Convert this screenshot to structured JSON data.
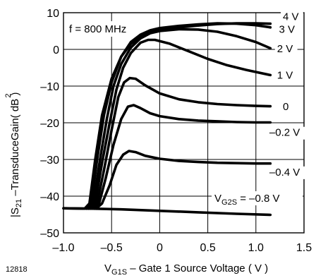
{
  "chart_data": {
    "type": "line",
    "annotation": "f = 800 MHz",
    "figure_id": "12818",
    "xlabel": {
      "prefix": "V",
      "sub": "G1S",
      "rest": " – Gate 1 Source Voltage ( V )"
    },
    "ylabel": {
      "prefix": "|S",
      "sub": "21",
      "sup": "2",
      "rest": " –TransduceGain( dB )"
    },
    "xlim": [
      -1.0,
      1.5
    ],
    "ylim": [
      -50,
      10
    ],
    "xticks": [
      -1.0,
      -0.5,
      0,
      0.5,
      1.0,
      1.5
    ],
    "xtick_labels": [
      "–1.0",
      "–0.5",
      "0",
      "0.5",
      "1.0",
      "1.5"
    ],
    "yticks": [
      10,
      0,
      -10,
      -20,
      -30,
      -40,
      -50
    ],
    "ytick_labels": [
      "10",
      "0",
      "–10",
      "–20",
      "–30",
      "–40",
      "–50"
    ],
    "series_param": {
      "prefix": "V",
      "sub": "G2S",
      "rest": " = –0.8 V"
    },
    "series": [
      {
        "name": "4 V",
        "color": "#000000",
        "points": [
          [
            -1.0,
            -43.3
          ],
          [
            -0.78,
            -43.4
          ],
          [
            -0.73,
            -42
          ],
          [
            -0.67,
            -30
          ],
          [
            -0.6,
            -18
          ],
          [
            -0.5,
            -8
          ],
          [
            -0.4,
            -2
          ],
          [
            -0.3,
            1.5
          ],
          [
            -0.2,
            3.5
          ],
          [
            -0.1,
            4.6
          ],
          [
            0.0,
            5.2
          ],
          [
            0.2,
            6.0
          ],
          [
            0.4,
            6.5
          ],
          [
            0.6,
            6.9
          ],
          [
            0.8,
            7.1
          ],
          [
            1.0,
            7.1
          ],
          [
            1.15,
            7.0
          ]
        ]
      },
      {
        "name": "3 V",
        "color": "#000000",
        "points": [
          [
            -0.76,
            -43.4
          ],
          [
            -0.71,
            -42
          ],
          [
            -0.65,
            -30
          ],
          [
            -0.58,
            -18
          ],
          [
            -0.5,
            -9
          ],
          [
            -0.4,
            -2
          ],
          [
            -0.3,
            2
          ],
          [
            -0.2,
            4
          ],
          [
            -0.1,
            5.2
          ],
          [
            0.0,
            5.8
          ],
          [
            0.2,
            6.4
          ],
          [
            0.4,
            6.8
          ],
          [
            0.6,
            7.1
          ],
          [
            0.8,
            7.0
          ],
          [
            1.0,
            6.6
          ],
          [
            1.15,
            6.0
          ]
        ]
      },
      {
        "name": "2 V",
        "color": "#000000",
        "points": [
          [
            -0.74,
            -43.4
          ],
          [
            -0.69,
            -42
          ],
          [
            -0.62,
            -30
          ],
          [
            -0.55,
            -19
          ],
          [
            -0.48,
            -10
          ],
          [
            -0.4,
            -4
          ],
          [
            -0.3,
            0.5
          ],
          [
            -0.2,
            3.0
          ],
          [
            -0.1,
            4.4
          ],
          [
            0.0,
            5.0
          ],
          [
            0.2,
            5.5
          ],
          [
            0.4,
            5.4
          ],
          [
            0.6,
            4.8
          ],
          [
            0.8,
            3.6
          ],
          [
            1.0,
            2.0
          ],
          [
            1.15,
            0.3
          ]
        ]
      },
      {
        "name": "1 V",
        "color": "#000000",
        "points": [
          [
            -0.72,
            -43.4
          ],
          [
            -0.67,
            -42
          ],
          [
            -0.6,
            -31
          ],
          [
            -0.52,
            -20
          ],
          [
            -0.45,
            -11
          ],
          [
            -0.38,
            -5
          ],
          [
            -0.3,
            -1
          ],
          [
            -0.2,
            1.8
          ],
          [
            -0.12,
            2.6
          ],
          [
            -0.05,
            2.6
          ],
          [
            0.1,
            1.6
          ],
          [
            0.3,
            -0.5
          ],
          [
            0.5,
            -2.6
          ],
          [
            0.7,
            -4.3
          ],
          [
            0.9,
            -5.6
          ],
          [
            1.15,
            -7.0
          ]
        ]
      },
      {
        "name": "0",
        "color": "#000000",
        "points": [
          [
            -0.7,
            -43.4
          ],
          [
            -0.65,
            -42
          ],
          [
            -0.58,
            -33
          ],
          [
            -0.5,
            -22
          ],
          [
            -0.43,
            -13
          ],
          [
            -0.37,
            -9
          ],
          [
            -0.31,
            -7.8
          ],
          [
            -0.25,
            -8.0
          ],
          [
            -0.15,
            -9.8
          ],
          [
            0.0,
            -12.0
          ],
          [
            0.2,
            -13.6
          ],
          [
            0.4,
            -14.4
          ],
          [
            0.6,
            -14.9
          ],
          [
            0.8,
            -15.2
          ],
          [
            1.0,
            -15.4
          ],
          [
            1.15,
            -15.5
          ]
        ]
      },
      {
        "name": "–0.2 V",
        "color": "#000000",
        "points": [
          [
            -0.68,
            -43.4
          ],
          [
            -0.63,
            -42
          ],
          [
            -0.56,
            -35
          ],
          [
            -0.48,
            -26
          ],
          [
            -0.4,
            -19
          ],
          [
            -0.33,
            -15.6
          ],
          [
            -0.27,
            -15.2
          ],
          [
            -0.2,
            -16.0
          ],
          [
            -0.1,
            -17.4
          ],
          [
            0.0,
            -18.2
          ],
          [
            0.2,
            -19.0
          ],
          [
            0.4,
            -19.4
          ],
          [
            0.6,
            -19.6
          ],
          [
            0.8,
            -19.8
          ],
          [
            1.0,
            -19.9
          ],
          [
            1.15,
            -19.9
          ]
        ]
      },
      {
        "name": "–0.4 V",
        "color": "#000000",
        "points": [
          [
            -0.66,
            -43.4
          ],
          [
            -0.6,
            -42
          ],
          [
            -0.52,
            -37
          ],
          [
            -0.45,
            -31.5
          ],
          [
            -0.38,
            -28.7
          ],
          [
            -0.32,
            -27.7
          ],
          [
            -0.25,
            -28.0
          ],
          [
            -0.15,
            -29.0
          ],
          [
            0.0,
            -29.8
          ],
          [
            0.2,
            -30.4
          ],
          [
            0.4,
            -30.7
          ],
          [
            0.6,
            -30.9
          ],
          [
            0.8,
            -31.0
          ],
          [
            1.0,
            -31.1
          ],
          [
            1.15,
            -31.1
          ]
        ]
      },
      {
        "name": "–0.8 V",
        "color": "#000000",
        "points": [
          [
            -1.0,
            -43.3
          ],
          [
            -0.7,
            -43.4
          ],
          [
            -0.4,
            -43.6
          ],
          [
            0.0,
            -44.0
          ],
          [
            0.4,
            -44.4
          ],
          [
            0.8,
            -44.8
          ],
          [
            1.15,
            -45.1
          ]
        ]
      }
    ],
    "series_labels": [
      {
        "text": "4 V",
        "x": 1.28,
        "y": 8.0
      },
      {
        "text": "3 V",
        "x": 1.24,
        "y": 4.5
      },
      {
        "text": "2 V",
        "x": 1.22,
        "y": -0.8
      },
      {
        "text": "1 V",
        "x": 1.22,
        "y": -8.0
      },
      {
        "text": "0",
        "x": 1.28,
        "y": -16.5
      },
      {
        "text": "–0.2 V",
        "x": 1.14,
        "y": -23.6
      },
      {
        "text": "–0.4 V",
        "x": 1.14,
        "y": -34.4
      }
    ],
    "grid": true,
    "legend": "none"
  }
}
